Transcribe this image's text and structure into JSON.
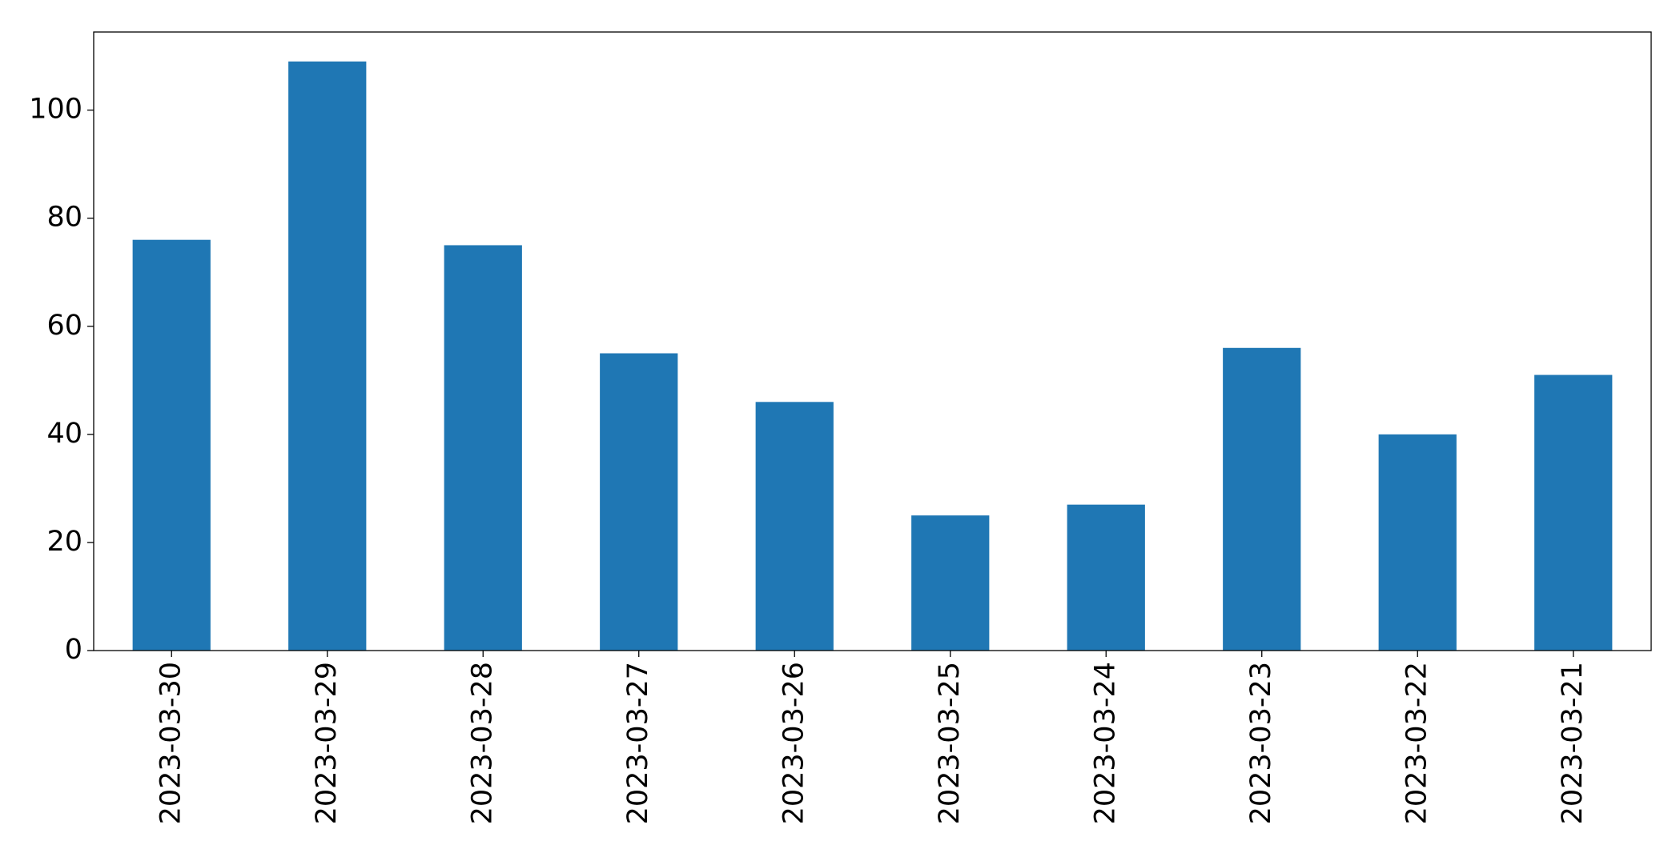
{
  "chart_data": {
    "type": "bar",
    "categories": [
      "2023-03-30",
      "2023-03-29",
      "2023-03-28",
      "2023-03-27",
      "2023-03-26",
      "2023-03-25",
      "2023-03-24",
      "2023-03-23",
      "2023-03-22",
      "2023-03-21"
    ],
    "values": [
      76,
      109,
      75,
      55,
      46,
      25,
      27,
      56,
      40,
      51
    ],
    "color": "#1f77b4",
    "ylim": [
      0,
      114.45
    ],
    "yticks": [
      0,
      20,
      40,
      60,
      80,
      100
    ],
    "grid": false
  }
}
